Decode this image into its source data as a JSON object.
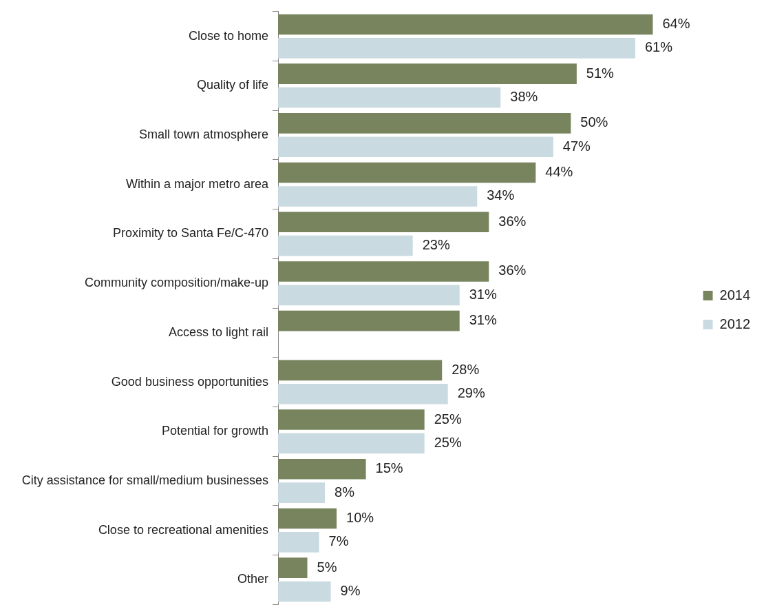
{
  "chart_data": {
    "type": "bar",
    "orientation": "horizontal",
    "legend": "right",
    "categories": [
      "Close to home",
      "Quality of life",
      "Small town atmosphere",
      "Within a major metro area",
      "Proximity to Santa Fe/C-470",
      "Community composition/make-up",
      "Access to light rail",
      "Good business opportunities",
      "Potential for growth",
      "City assistance for small/medium businesses",
      "Close to recreational amenities",
      "Other"
    ],
    "series": [
      {
        "name": "2014",
        "color": "#77845e",
        "values": [
          64,
          51,
          50,
          44,
          36,
          36,
          31,
          28,
          25,
          15,
          10,
          5
        ],
        "value_labels": [
          "64%",
          "51%",
          "50%",
          "44%",
          "36%",
          "36%",
          "31%",
          "28%",
          "25%",
          "15%",
          "10%",
          "5%"
        ]
      },
      {
        "name": "2012",
        "color": "#c9dae0",
        "values": [
          61,
          38,
          47,
          34,
          23,
          31,
          null,
          29,
          25,
          8,
          7,
          9
        ],
        "value_labels": [
          "61%",
          "38%",
          "47%",
          "34%",
          "23%",
          "31%",
          null,
          "29%",
          "25%",
          "8%",
          "7%",
          "9%"
        ]
      }
    ]
  }
}
